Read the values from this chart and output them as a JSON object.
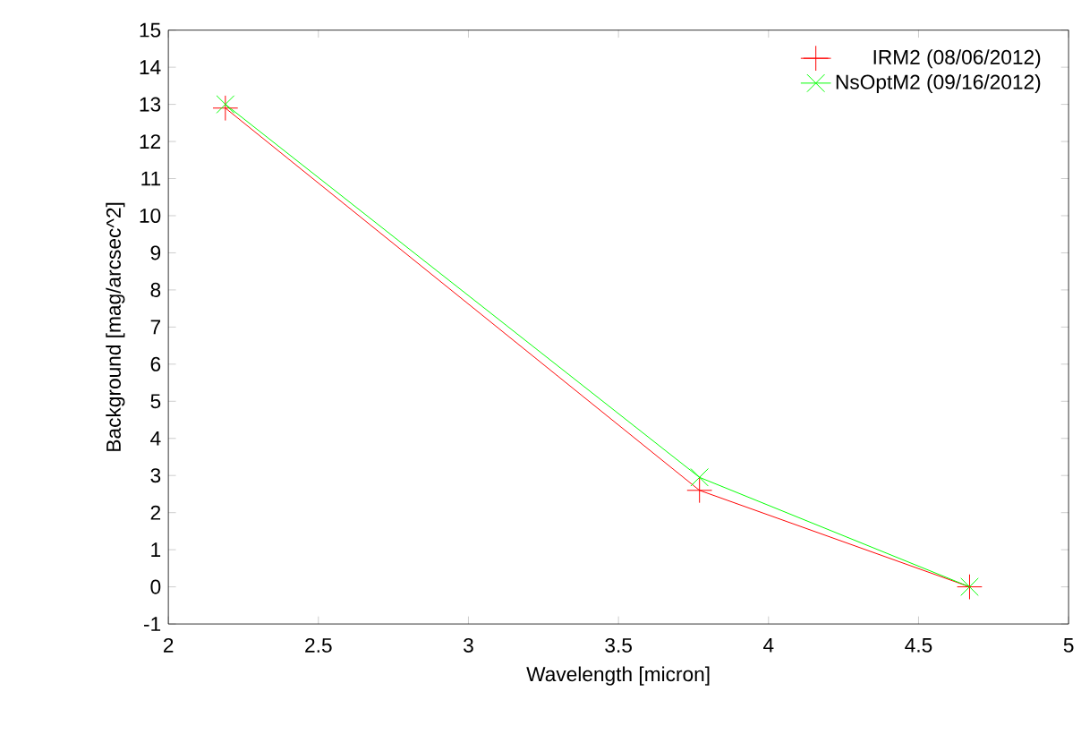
{
  "chart_data": {
    "type": "line",
    "xlabel": "Wavelength [micron]",
    "ylabel": "Background [mag/arcsec^2]",
    "xlim": [
      2,
      5
    ],
    "xticks": [
      2,
      2.5,
      3,
      3.5,
      4,
      4.5,
      5
    ],
    "ylim": [
      -1,
      15
    ],
    "yticks": [
      -1,
      0,
      1,
      2,
      3,
      4,
      5,
      6,
      7,
      8,
      9,
      10,
      11,
      12,
      13,
      14,
      15
    ],
    "legend": "top right",
    "grid": false,
    "series": [
      {
        "name": "IRM2 (08/06/2012)",
        "color": "#ff0000",
        "marker": "plus",
        "x": [
          2.19,
          3.77,
          4.67
        ],
        "values": [
          12.9,
          2.6,
          0
        ]
      },
      {
        "name": "NsOptM2 (09/16/2012)",
        "color": "#00ff00",
        "marker": "cross",
        "x": [
          2.19,
          3.77,
          4.67
        ],
        "values": [
          13.0,
          2.95,
          0
        ]
      }
    ]
  }
}
